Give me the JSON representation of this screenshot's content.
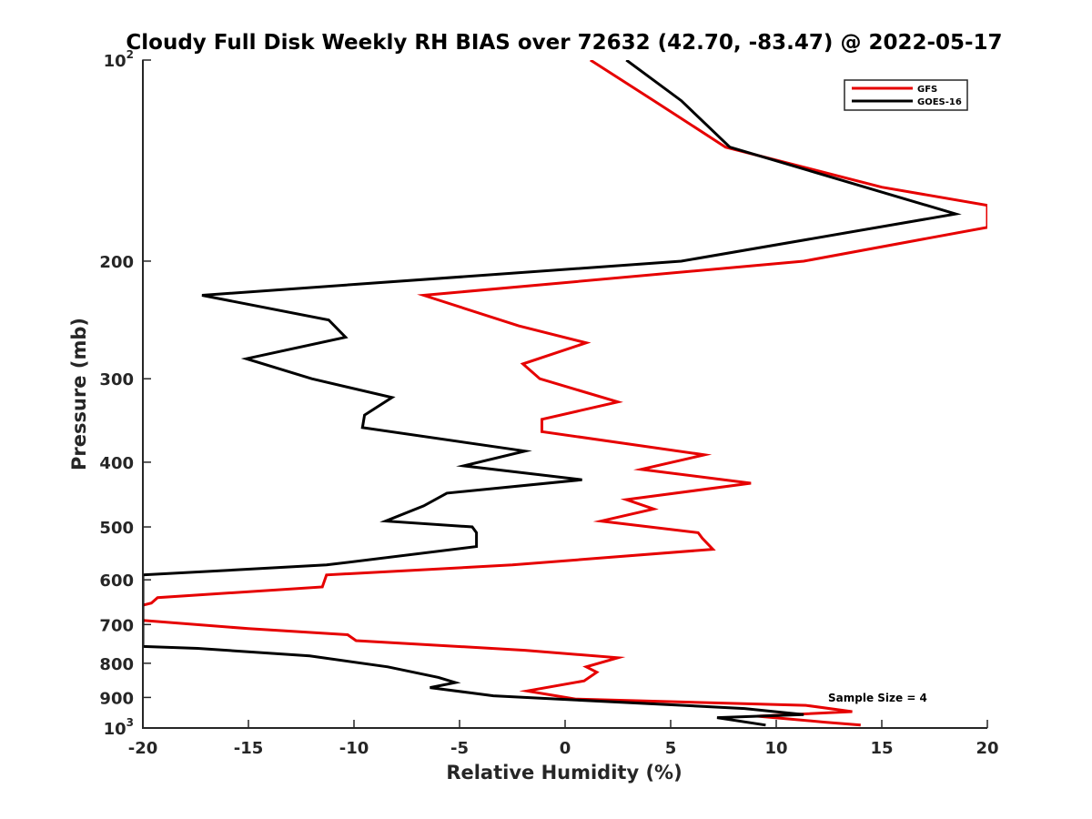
{
  "chart_data": {
    "type": "line",
    "title": "Cloudy Full Disk Weekly RH BIAS over 72632 (42.70, -83.47) @ 2022-05-17",
    "xlabel": "Relative Humidity (%)",
    "ylabel": "Pressure (mb)",
    "xlim": [
      -20,
      20
    ],
    "ylim": [
      100,
      1000
    ],
    "yscale": "log",
    "yreversed": true,
    "xticks": [
      -20,
      -15,
      -10,
      -5,
      0,
      5,
      10,
      15,
      20
    ],
    "xtick_labels": [
      "-20",
      "-15",
      "-10",
      "-5",
      "0",
      "5",
      "10",
      "15",
      "20"
    ],
    "yticks": [
      100,
      200,
      300,
      400,
      500,
      600,
      700,
      800,
      900,
      1000
    ],
    "ytick_labels": [
      {
        "base": "10",
        "sup": "2"
      },
      {
        "base": "200",
        "sup": ""
      },
      {
        "base": "300",
        "sup": ""
      },
      {
        "base": "400",
        "sup": ""
      },
      {
        "base": "500",
        "sup": ""
      },
      {
        "base": "600",
        "sup": ""
      },
      {
        "base": "700",
        "sup": ""
      },
      {
        "base": "800",
        "sup": ""
      },
      {
        "base": "900",
        "sup": ""
      },
      {
        "base": "10",
        "sup": "3"
      }
    ],
    "grid": false,
    "legend_position": "top-right",
    "annotation": "Sample Size = 4",
    "series": [
      {
        "name": "GFS",
        "color": "#e60000",
        "points": [
          [
            1.2,
            100
          ],
          [
            4.2,
            115
          ],
          [
            7.6,
            135
          ],
          [
            15.0,
            155
          ],
          [
            20.0,
            165
          ],
          [
            20.0,
            178
          ],
          [
            11.3,
            200
          ],
          [
            -6.7,
            225
          ],
          [
            -2.2,
            250
          ],
          [
            1.0,
            265
          ],
          [
            -2.0,
            285
          ],
          [
            -1.2,
            300
          ],
          [
            2.5,
            325
          ],
          [
            -1.1,
            345
          ],
          [
            -1.1,
            360
          ],
          [
            6.6,
            390
          ],
          [
            3.6,
            410
          ],
          [
            8.8,
            430
          ],
          [
            2.9,
            455
          ],
          [
            4.2,
            470
          ],
          [
            1.7,
            490
          ],
          [
            6.3,
            510
          ],
          [
            6.5,
            520
          ],
          [
            7.0,
            540
          ],
          [
            -2.5,
            570
          ],
          [
            -11.3,
            590
          ],
          [
            -11.5,
            615
          ],
          [
            -19.3,
            638
          ],
          [
            -19.6,
            650
          ],
          [
            -20.0,
            655
          ],
          [
            -20.0,
            690
          ],
          [
            -15.0,
            710
          ],
          [
            -10.3,
            725
          ],
          [
            -9.9,
            740
          ],
          [
            -1.9,
            765
          ],
          [
            2.5,
            785
          ],
          [
            1.0,
            810
          ],
          [
            1.5,
            825
          ],
          [
            0.9,
            850
          ],
          [
            -1.8,
            880
          ],
          [
            0.5,
            905
          ],
          [
            11.4,
            925
          ],
          [
            13.6,
            945
          ],
          [
            9.1,
            960
          ],
          [
            12.3,
            980
          ],
          [
            14.0,
            990
          ]
        ]
      },
      {
        "name": "GOES-16",
        "color": "#000000",
        "points": [
          [
            2.9,
            100
          ],
          [
            5.5,
            115
          ],
          [
            7.8,
            135
          ],
          [
            18.5,
            170
          ],
          [
            5.5,
            200
          ],
          [
            -17.2,
            225
          ],
          [
            -11.2,
            245
          ],
          [
            -10.4,
            260
          ],
          [
            -15.1,
            280
          ],
          [
            -12.0,
            300
          ],
          [
            -8.2,
            320
          ],
          [
            -9.5,
            340
          ],
          [
            -9.6,
            355
          ],
          [
            -1.9,
            385
          ],
          [
            -4.8,
            405
          ],
          [
            0.8,
            425
          ],
          [
            -5.6,
            445
          ],
          [
            -6.7,
            465
          ],
          [
            -8.5,
            490
          ],
          [
            -4.4,
            500
          ],
          [
            -4.2,
            510
          ],
          [
            -4.2,
            535
          ],
          [
            -11.3,
            570
          ],
          [
            -20.0,
            590
          ],
          [
            -20.0,
            755
          ],
          [
            -17.4,
            760
          ],
          [
            -12.1,
            780
          ],
          [
            -8.4,
            810
          ],
          [
            -6.0,
            840
          ],
          [
            -5.2,
            855
          ],
          [
            -6.4,
            870
          ],
          [
            -3.4,
            895
          ],
          [
            8.5,
            935
          ],
          [
            11.3,
            955
          ],
          [
            7.2,
            965
          ],
          [
            9.5,
            990
          ]
        ]
      }
    ]
  }
}
